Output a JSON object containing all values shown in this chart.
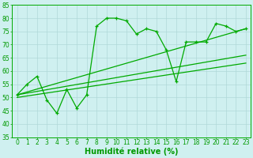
{
  "x_ticks": [
    0,
    1,
    2,
    3,
    4,
    5,
    6,
    7,
    8,
    9,
    10,
    11,
    12,
    13,
    14,
    15,
    16,
    17,
    18,
    19,
    20,
    21,
    22,
    23
  ],
  "yticks": [
    35,
    40,
    45,
    50,
    55,
    60,
    65,
    70,
    75,
    80,
    85
  ],
  "ylim": [
    35,
    85
  ],
  "xlim": [
    -0.5,
    23.5
  ],
  "main_series_x": [
    0,
    1,
    2,
    3,
    4,
    5,
    6,
    7,
    8,
    9,
    10,
    11,
    12,
    13,
    14,
    15,
    16,
    17,
    18,
    19,
    20,
    21,
    22,
    23
  ],
  "main_series_y": [
    51,
    55,
    58,
    49,
    44,
    53,
    46,
    51,
    77,
    80,
    80,
    79,
    74,
    76,
    75,
    68,
    56,
    71,
    71,
    71,
    78,
    77,
    75,
    76
  ],
  "trend1_x": [
    0,
    23
  ],
  "trend1_y": [
    51,
    76
  ],
  "trend2_x": [
    0,
    23
  ],
  "trend2_y": [
    51,
    66
  ],
  "trend3_x": [
    0,
    23
  ],
  "trend3_y": [
    50,
    63
  ],
  "xlabel": "Humidité relative (%)",
  "bg_color": "#cff0f0",
  "grid_color": "#b0d8d8",
  "line_color": "#00aa00",
  "xlabel_color": "#009900",
  "tick_color": "#009900",
  "xlabel_fontsize": 7,
  "tick_fontsize": 5.5
}
